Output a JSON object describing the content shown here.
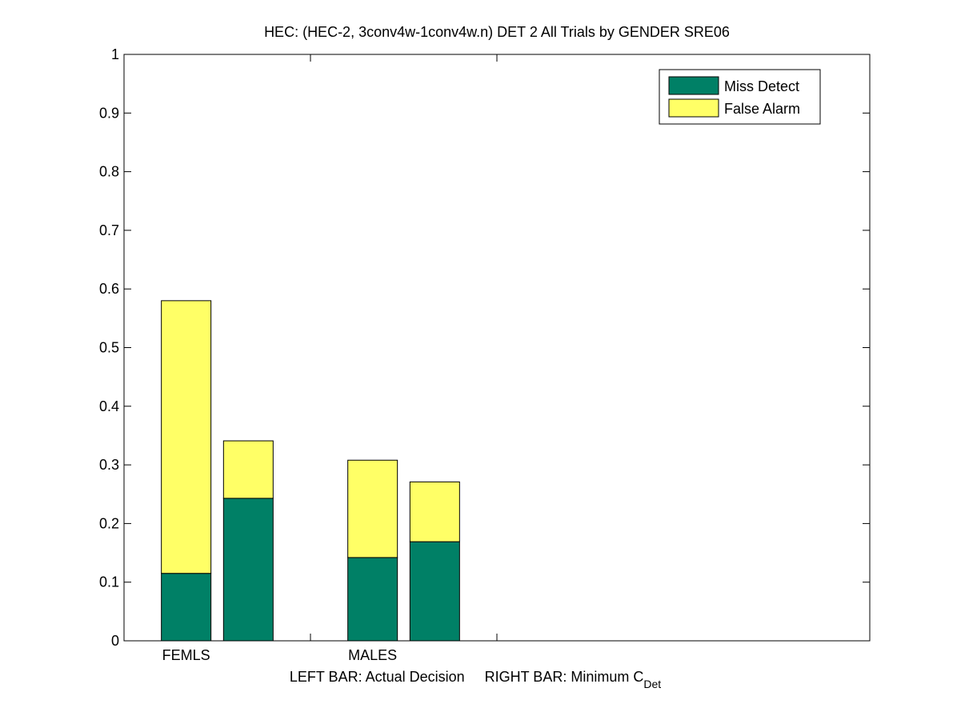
{
  "chart_data": {
    "type": "stacked-bar",
    "title": "HEC: (HEC-2, 3conv4w-1conv4w.n) DET 2 All Trials by GENDER SRE06",
    "xlabel": "LEFT BAR: Actual Decision     RIGHT BAR: Minimum C",
    "xlabel_subscript": "Det",
    "categories": [
      "FEMLS",
      null,
      "MALES",
      null
    ],
    "series": [
      {
        "name": "Miss Detect",
        "color": "#008066",
        "values": [
          0.115,
          0.243,
          0.142,
          0.169
        ]
      },
      {
        "name": "False Alarm",
        "color": "#ffff66",
        "values": [
          0.465,
          0.098,
          0.166,
          0.102
        ]
      }
    ],
    "ylim": [
      0,
      1
    ],
    "yticks": [
      0,
      0.1,
      0.2,
      0.3,
      0.4,
      0.5,
      0.6,
      0.7,
      0.8,
      0.9,
      1
    ],
    "legend": "top-right"
  }
}
